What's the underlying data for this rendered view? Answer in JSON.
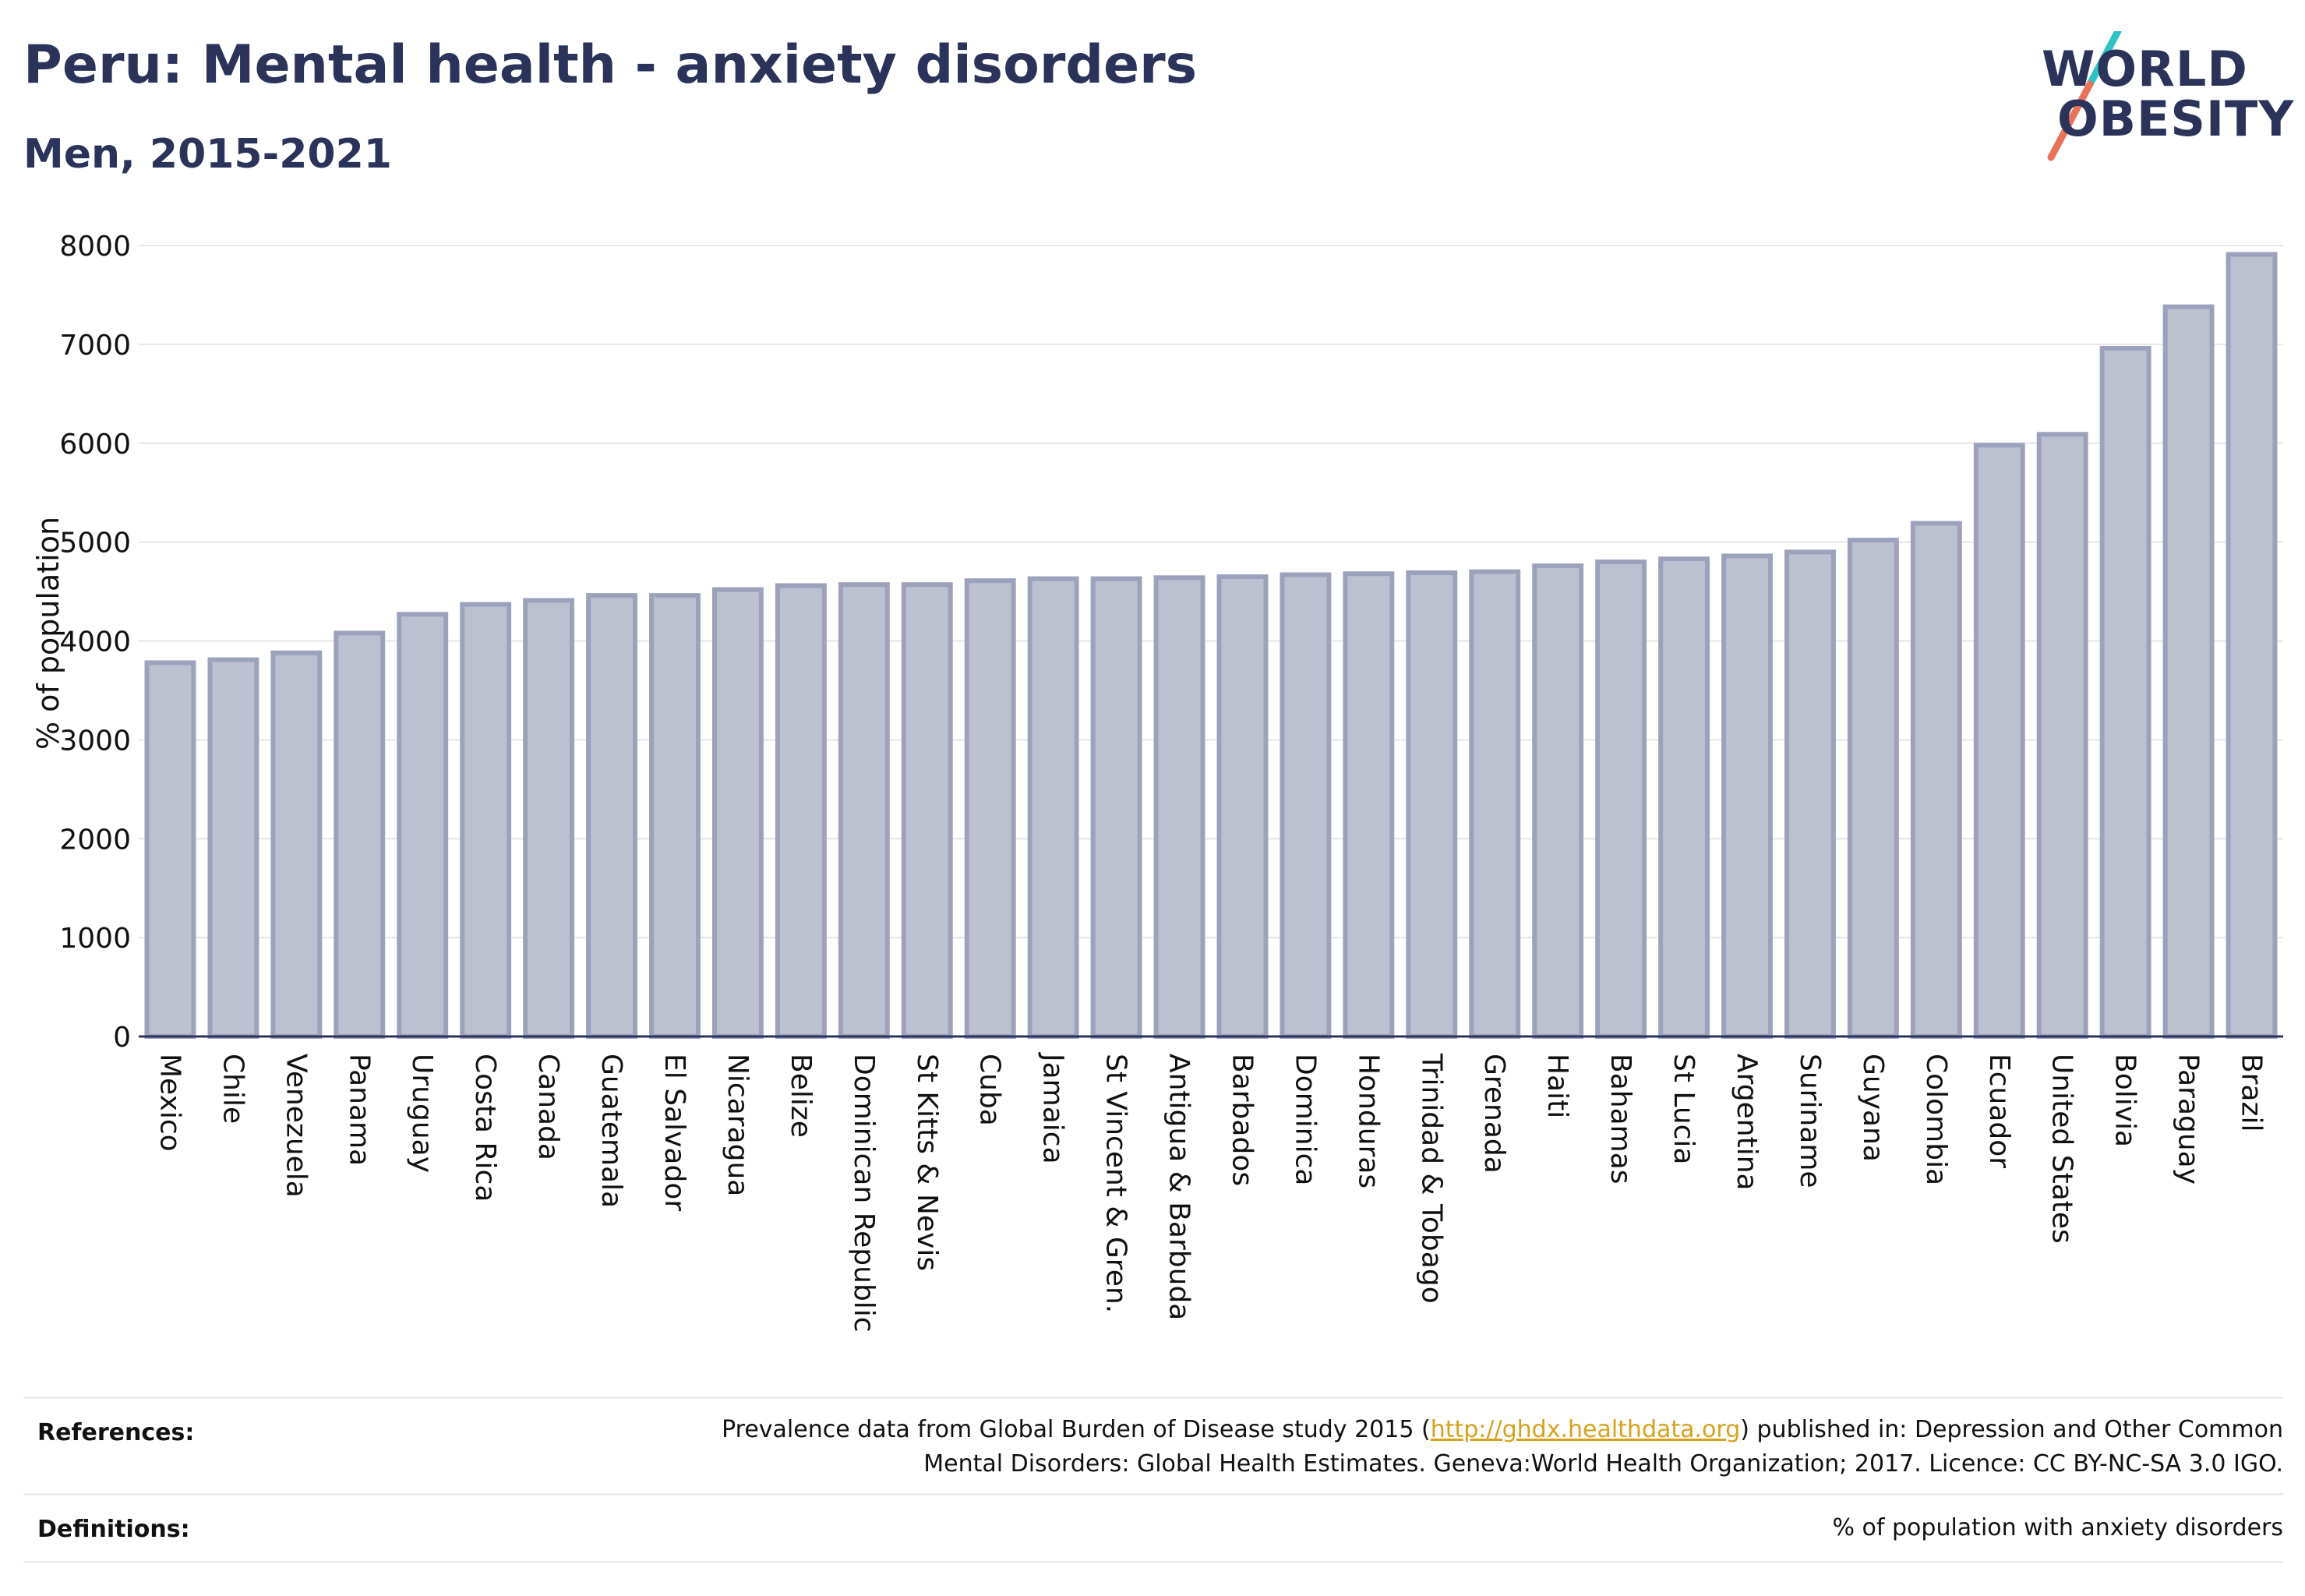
{
  "header": {
    "title": "Peru: Mental health - anxiety disorders",
    "subtitle": "Men, 2015-2021"
  },
  "logo": {
    "line1": "WORLD",
    "line2": "OBESITY",
    "colors": {
      "text": "#2b335a",
      "slash_top": "#2ec4c4",
      "slash_bottom": "#e8735a"
    }
  },
  "chart_data": {
    "type": "bar",
    "ylabel": "% of population",
    "ylim": [
      0,
      8000
    ],
    "yticks": [
      0,
      1000,
      2000,
      3000,
      4000,
      5000,
      6000,
      7000,
      8000
    ],
    "grid": true,
    "bar_fill": "#bcc0cf",
    "bar_stroke": "#9ca2bb",
    "categories": [
      "Mexico",
      "Chile",
      "Venezuela",
      "Panama",
      "Uruguay",
      "Costa Rica",
      "Canada",
      "Guatemala",
      "El Salvador",
      "Nicaragua",
      "Belize",
      "Dominican Republic",
      "St Kitts & Nevis",
      "Cuba",
      "Jamaica",
      "St Vincent & Gren.",
      "Antigua & Barbuda",
      "Barbados",
      "Dominica",
      "Honduras",
      "Trinidad & Tobago",
      "Grenada",
      "Haiti",
      "Bahamas",
      "St Lucia",
      "Argentina",
      "Suriname",
      "Guyana",
      "Colombia",
      "Ecuador",
      "United States",
      "Bolivia",
      "Paraguay",
      "Brazil"
    ],
    "values": [
      3780,
      3810,
      3880,
      4080,
      4270,
      4370,
      4410,
      4460,
      4460,
      4520,
      4560,
      4570,
      4570,
      4610,
      4630,
      4630,
      4640,
      4650,
      4670,
      4680,
      4690,
      4700,
      4760,
      4800,
      4830,
      4860,
      4900,
      5020,
      5190,
      5980,
      6090,
      6960,
      7380,
      7910
    ]
  },
  "footer": {
    "references_label": "References:",
    "references_line1_pre": "Prevalence data from Global Burden of Disease study 2015 (",
    "references_link": "http://ghdx.healthdata.org",
    "references_line1_post": ") published in: Depression and Other Common",
    "references_line2": "Mental Disorders: Global Health Estimates. Geneva:World Health Organization; 2017. Licence: CC BY-NC-SA 3.0 IGO.",
    "definitions_label": "Definitions:",
    "definitions_text": "% of population with anxiety disorders"
  }
}
